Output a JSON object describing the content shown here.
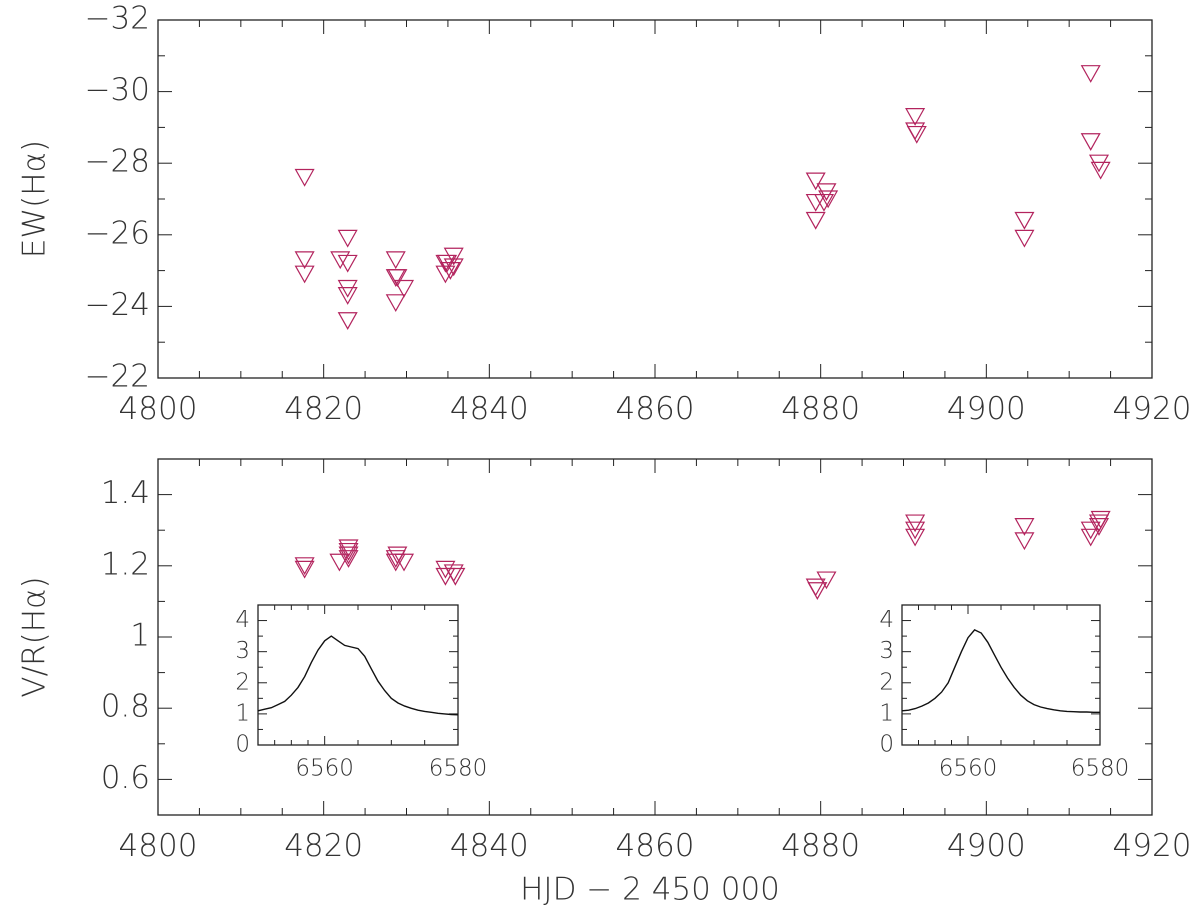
{
  "chart_data": [
    {
      "type": "scatter",
      "y_label": "EW(Hα)",
      "color": "#b3245e",
      "marker": "triangle-down",
      "xlim": [
        4800,
        4920
      ],
      "xticks": [
        4800,
        4820,
        4840,
        4860,
        4880,
        4900,
        4920
      ],
      "ylim": [
        -22,
        -32
      ],
      "yticks": [
        {
          "value": -32,
          "label": "−32"
        },
        {
          "value": -30,
          "label": "−30"
        },
        {
          "value": -28,
          "label": "−28"
        },
        {
          "value": -26,
          "label": "−26"
        },
        {
          "value": -24,
          "label": "−24"
        },
        {
          "value": -22,
          "label": "−22"
        }
      ],
      "x": [
        4817.7,
        4817.7,
        4817.7,
        4822.0,
        4822.9,
        4822.9,
        4822.9,
        4822.9,
        4822.9,
        4828.7,
        4828.7,
        4828.9,
        4829.7,
        4828.7,
        4834.7,
        4834.7,
        4835.3,
        4835.7,
        4835.7,
        4834.9,
        4879.4,
        4879.4,
        4879.4,
        4880.7,
        4880.9,
        4880.4,
        4891.4,
        4891.4,
        4891.6,
        4904.6,
        4904.6,
        4912.6,
        4912.6,
        4913.6,
        4913.8
      ],
      "values": [
        -27.6,
        -25.3,
        -24.9,
        -25.3,
        -25.9,
        -25.2,
        -24.5,
        -24.3,
        -23.6,
        -25.3,
        -24.8,
        -24.8,
        -24.5,
        -24.1,
        -25.2,
        -24.9,
        -25.0,
        -25.4,
        -25.1,
        -25.2,
        -27.5,
        -26.9,
        -26.4,
        -27.2,
        -27.0,
        -26.9,
        -29.3,
        -28.9,
        -28.8,
        -26.4,
        -25.9,
        -30.5,
        -28.6,
        -28.0,
        -27.8
      ]
    },
    {
      "type": "scatter",
      "y_label": "V/R(Hα)",
      "x_label": "HJD − 2 450 000",
      "color": "#b3245e",
      "marker": "triangle-down",
      "xlim": [
        4800,
        4920
      ],
      "xticks": [
        4800,
        4820,
        4840,
        4860,
        4880,
        4900,
        4920
      ],
      "ylim": [
        0.5,
        1.5
      ],
      "yticks": [
        0.6,
        0.8,
        1,
        1.2,
        1.4
      ],
      "x": [
        4817.7,
        4817.7,
        4821.9,
        4823.0,
        4823.0,
        4823.0,
        4823.0,
        4828.7,
        4828.7,
        4829.7,
        4828.9,
        4834.7,
        4834.7,
        4835.7,
        4835.9,
        4879.4,
        4879.6,
        4880.7,
        4891.4,
        4891.4,
        4891.4,
        4904.6,
        4904.6,
        4912.6,
        4912.6,
        4913.6,
        4913.8,
        4913.6
      ],
      "values": [
        1.2,
        1.19,
        1.21,
        1.24,
        1.23,
        1.22,
        1.25,
        1.22,
        1.21,
        1.21,
        1.23,
        1.19,
        1.17,
        1.18,
        1.17,
        1.14,
        1.13,
        1.16,
        1.32,
        1.3,
        1.28,
        1.31,
        1.27,
        1.3,
        1.28,
        1.32,
        1.33,
        1.31
      ]
    },
    {
      "type": "line",
      "color": "#111111",
      "xlim": [
        6550,
        6580
      ],
      "xticks": [
        6560,
        6580
      ],
      "ylim": [
        0,
        4.5
      ],
      "yticks": [
        0,
        1,
        2,
        3,
        4
      ],
      "x": [
        6550,
        6551,
        6552,
        6553,
        6554,
        6555,
        6556,
        6557,
        6558,
        6559,
        6560,
        6561,
        6562,
        6563,
        6564,
        6565,
        6566,
        6567,
        6568,
        6569,
        6570,
        6571,
        6572,
        6573,
        6574,
        6575,
        6576,
        6577,
        6578,
        6579,
        6580
      ],
      "values": [
        1.1,
        1.15,
        1.2,
        1.3,
        1.4,
        1.6,
        1.85,
        2.2,
        2.65,
        3.05,
        3.35,
        3.5,
        3.35,
        3.2,
        3.15,
        3.1,
        2.85,
        2.45,
        2.05,
        1.75,
        1.5,
        1.35,
        1.25,
        1.18,
        1.12,
        1.08,
        1.05,
        1.02,
        1.0,
        0.98,
        0.97
      ]
    },
    {
      "type": "line",
      "color": "#111111",
      "xlim": [
        6550,
        6580
      ],
      "xticks": [
        6560,
        6580
      ],
      "ylim": [
        0,
        4.5
      ],
      "yticks": [
        0,
        1,
        2,
        3,
        4
      ],
      "x": [
        6550,
        6551,
        6552,
        6553,
        6554,
        6555,
        6556,
        6557,
        6558,
        6559,
        6560,
        6561,
        6562,
        6563,
        6564,
        6565,
        6566,
        6567,
        6568,
        6569,
        6570,
        6571,
        6572,
        6573,
        6574,
        6575,
        6576,
        6577,
        6578,
        6579,
        6580
      ],
      "values": [
        1.1,
        1.12,
        1.17,
        1.25,
        1.35,
        1.5,
        1.7,
        2.0,
        2.5,
        3.0,
        3.45,
        3.7,
        3.6,
        3.3,
        2.9,
        2.5,
        2.15,
        1.85,
        1.6,
        1.42,
        1.3,
        1.22,
        1.17,
        1.13,
        1.1,
        1.08,
        1.07,
        1.06,
        1.06,
        1.05,
        1.05
      ]
    }
  ]
}
